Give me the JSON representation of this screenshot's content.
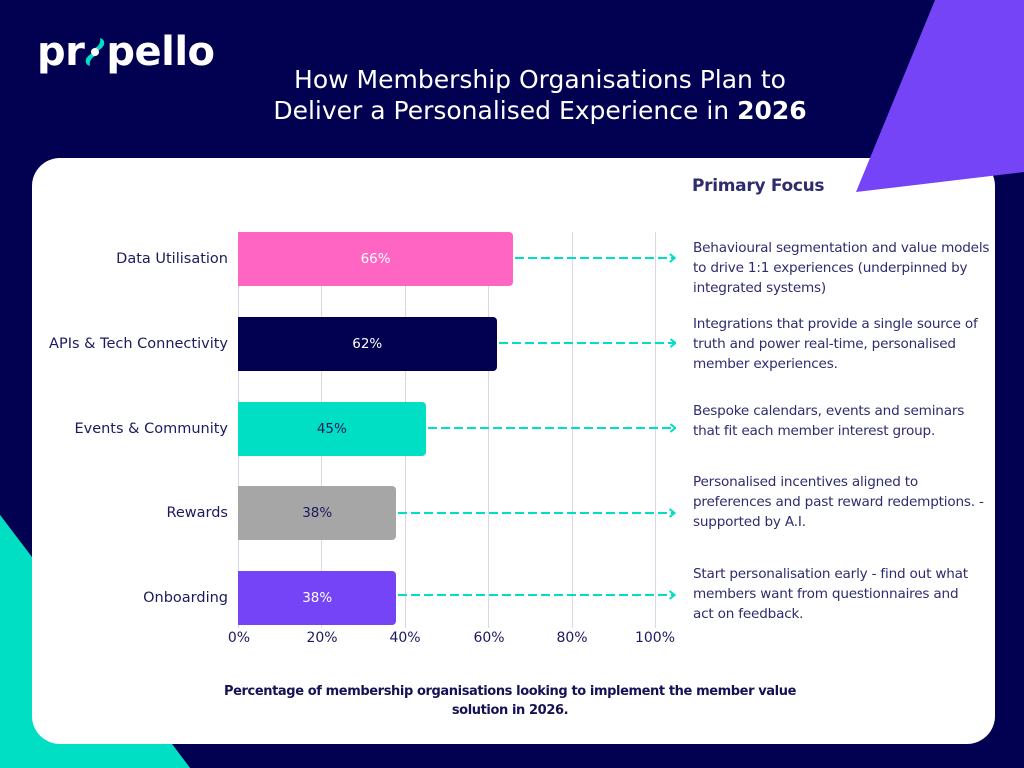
{
  "brand": {
    "logo_text_left": "pr",
    "logo_text_right": "pello",
    "colors": {
      "navy": "#020050",
      "purple": "#7444f6",
      "teal": "#00dfc4",
      "pink": "#ff66c4",
      "grey": "#a6a6a6"
    }
  },
  "header": {
    "title_line1": "How Membership Organisations Plan to",
    "title_line2": "Deliver a Personalised Experience in ",
    "title_year": "2026"
  },
  "focus": {
    "heading": "Primary Focus",
    "items": [
      "Behavioural segmentation and value models to drive 1:1 experiences (underpinned by integrated systems)",
      "Integrations that provide a single source of truth and power real-time, personalised member experiences.",
      "Bespoke calendars, events and seminars that fit each member interest group.",
      "Personalised incentives aligned to preferences and past reward redemptions. - supported by A.I.",
      "Start personalisation early - find out what members want from questionnaires and act on feedback."
    ]
  },
  "footnote": "Percentage of membership organisations looking to implement the member value solution in 2026.",
  "chart_data": {
    "type": "bar",
    "orientation": "horizontal",
    "title": "How Membership Organisations Plan to Deliver a Personalised Experience in 2026",
    "categories": [
      "Data Utilisation",
      "APIs & Tech Connectivity",
      "Events & Community",
      "Rewards",
      "Onboarding"
    ],
    "values": [
      66,
      62,
      45,
      38,
      38
    ],
    "value_labels": [
      "66%",
      "62%",
      "45%",
      "38%",
      "38%"
    ],
    "bar_colors": [
      "#ff66c4",
      "#020050",
      "#00dfc4",
      "#a6a6a6",
      "#7444f6"
    ],
    "label_colors": [
      "#ffffff",
      "#ffffff",
      "#1c1a5e",
      "#1c1a5e",
      "#ffffff"
    ],
    "xlabel": "Percentage of membership organisations looking to implement the member value solution in 2026.",
    "ylabel": "",
    "xlim": [
      0,
      100
    ],
    "x_ticks": [
      "0%",
      "20%",
      "40%",
      "60%",
      "80%",
      "100%"
    ],
    "grid": true,
    "annotations_heading": "Primary Focus"
  }
}
